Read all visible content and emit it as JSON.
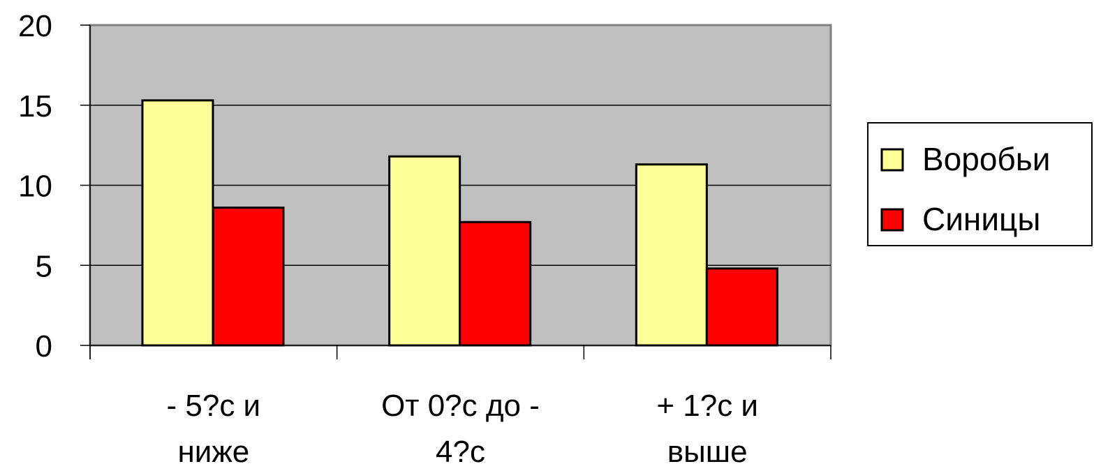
{
  "chart_data": {
    "type": "bar",
    "title": "",
    "xlabel": "",
    "ylabel": "",
    "categories": [
      [
        "- 5?с и",
        "ниже"
      ],
      [
        "От 0?с до -",
        "4?с"
      ],
      [
        "+ 1?с и",
        "выше"
      ]
    ],
    "series": [
      {
        "name": "Воробьи",
        "color": "#ffff99",
        "values": [
          15.3,
          11.8,
          11.3
        ]
      },
      {
        "name": "Синицы",
        "color": "#ff0000",
        "values": [
          8.6,
          7.7,
          4.8
        ]
      }
    ],
    "ylim": [
      0,
      20
    ],
    "yticks": [
      "0",
      "5",
      "10",
      "15",
      "20"
    ],
    "grid": true,
    "plot_background": "#c0c0c0",
    "legend_position": "right"
  }
}
